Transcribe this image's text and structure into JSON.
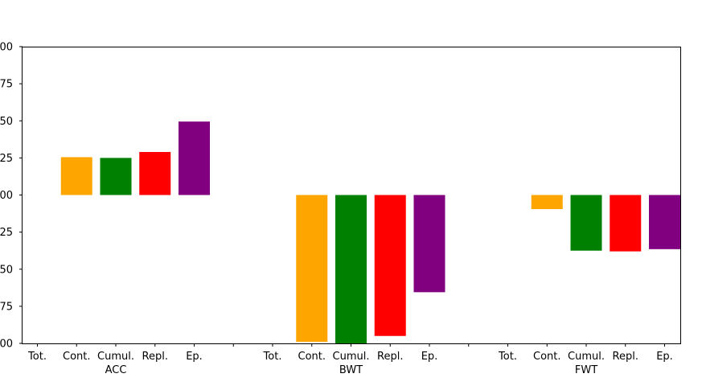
{
  "chart_data": {
    "type": "bar",
    "groups": [
      "ACC",
      "BWT",
      "FWT"
    ],
    "categories": [
      "Tot.",
      "Cont.",
      "Cumul.",
      "Repl.",
      "Ep."
    ],
    "colors": {
      "Tot.": "#1f77b4",
      "Cont.": "#FFA500",
      "Cumul.": "#008000",
      "Repl.": "#FF0000",
      "Ep.": "#800080"
    },
    "series": [
      {
        "group": "ACC",
        "values": [
          0.0,
          0.255,
          0.25,
          0.29,
          0.495
        ]
      },
      {
        "group": "BWT",
        "values": [
          0.0,
          -0.99,
          -1.01,
          -0.95,
          -0.655
        ]
      },
      {
        "group": "FWT",
        "values": [
          0.0,
          -0.095,
          -0.375,
          -0.38,
          -0.365
        ]
      }
    ],
    "y_tick_labels": [
      "00",
      "75",
      "50",
      "25",
      "00",
      "25",
      "50",
      "75",
      "00"
    ],
    "ylim": [
      -1.0,
      1.0
    ],
    "grid": false,
    "title": "",
    "xlabel": "",
    "ylabel": ""
  }
}
